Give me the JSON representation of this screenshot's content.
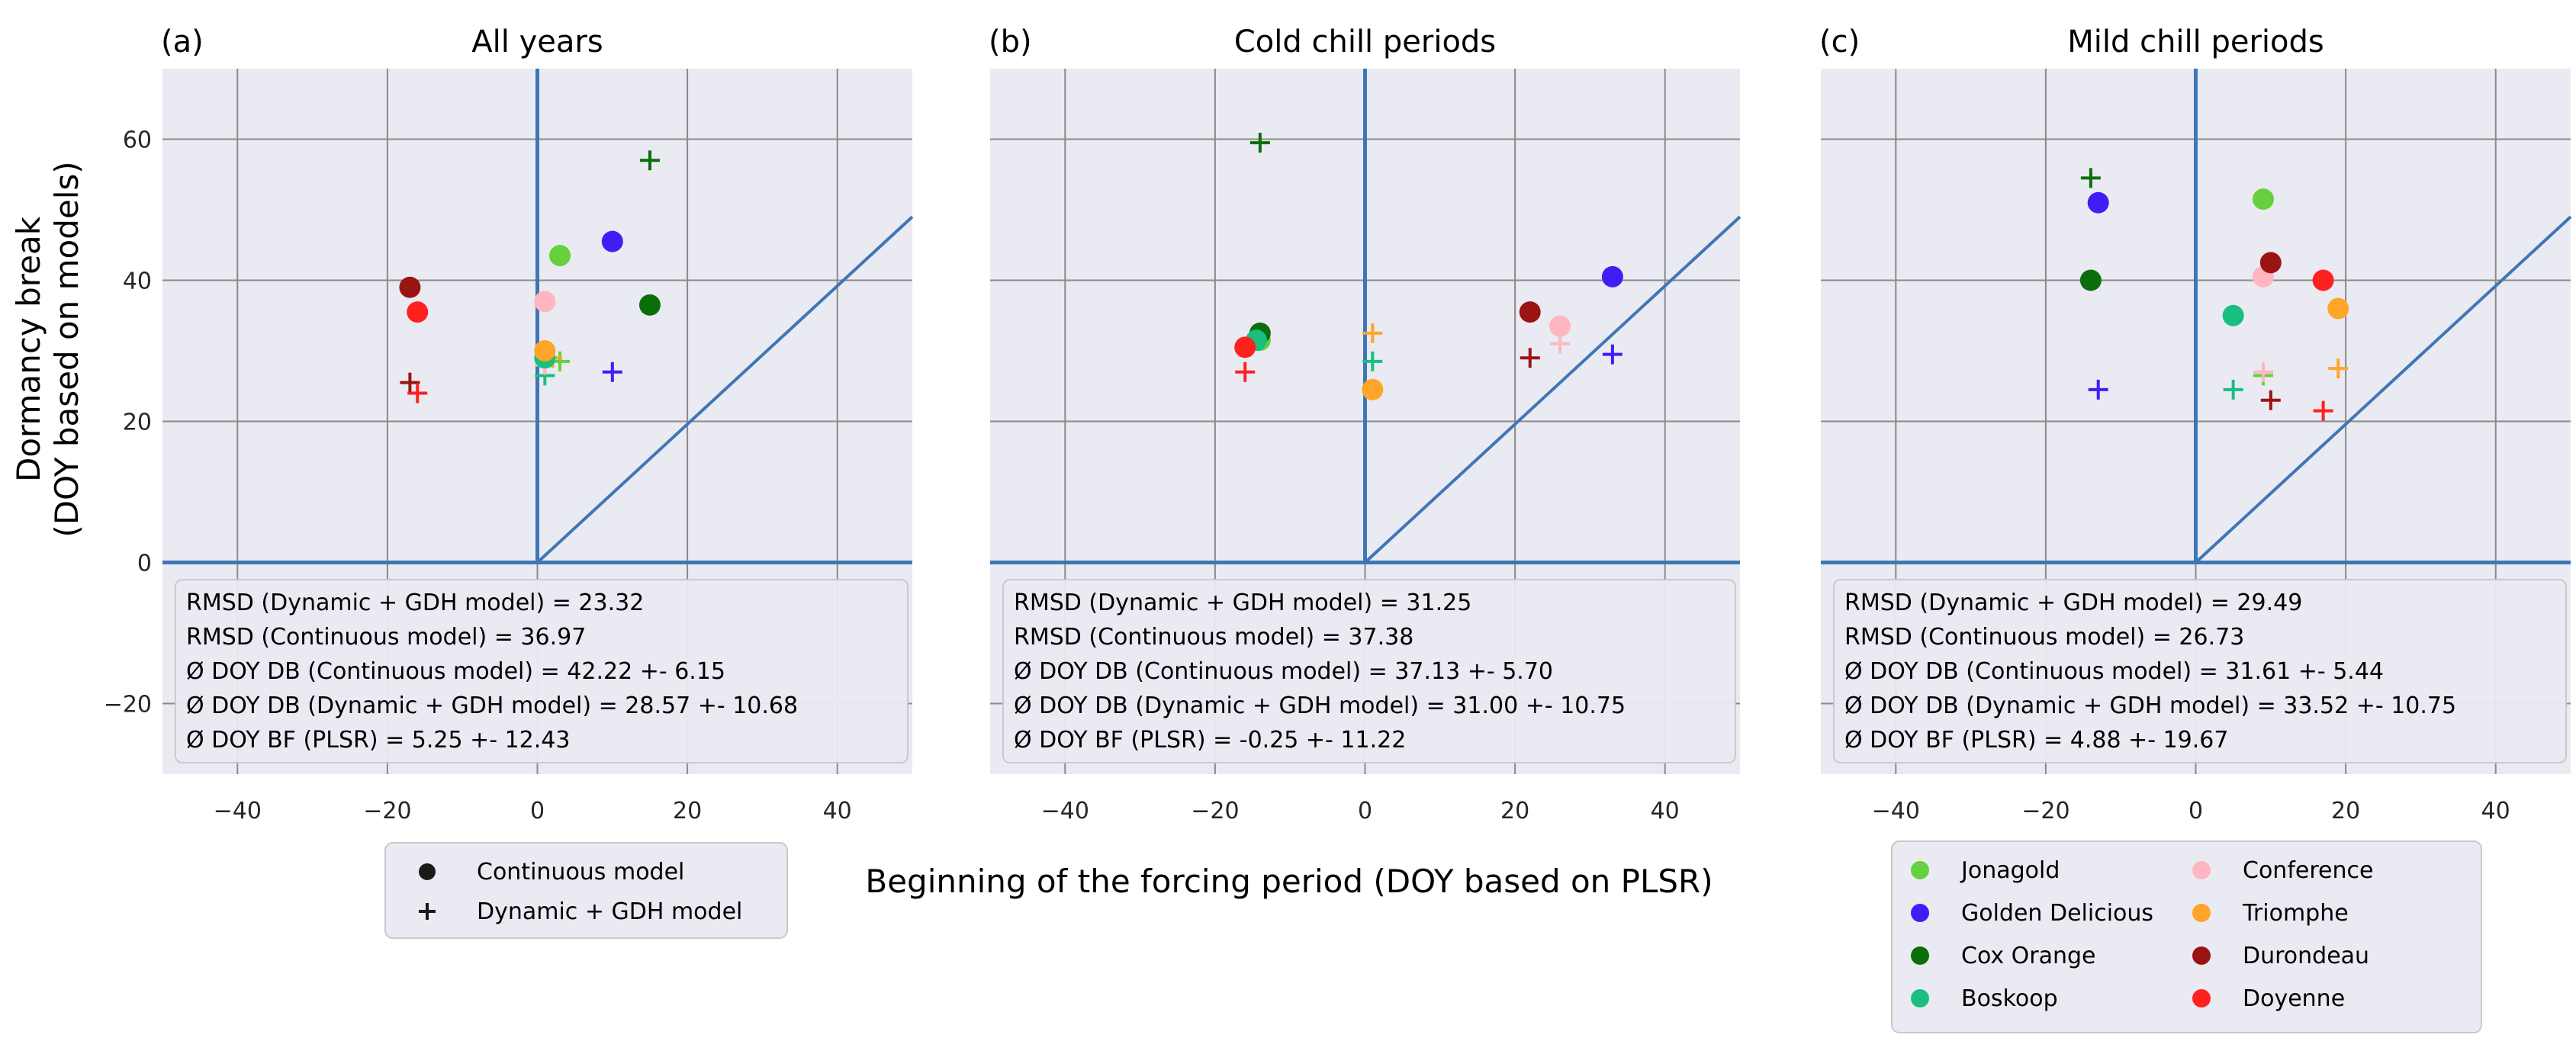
{
  "chart_data": {
    "type": "scatter",
    "xlabel": "Beginning of the forcing period (DOY based on PLSR)",
    "ylabel": [
      "Dormancy break",
      "(DOY based on models)"
    ],
    "xlim": [
      -50,
      50
    ],
    "ylim": [
      -30,
      70
    ],
    "xticks": [
      -40,
      -20,
      0,
      20,
      40
    ],
    "yticks": [
      -20,
      0,
      20,
      40,
      60
    ],
    "cultivars": [
      {
        "name": "Jonagold",
        "color": "#66d13c"
      },
      {
        "name": "Golden Delicious",
        "color": "#3f1ef5"
      },
      {
        "name": "Cox Orange",
        "color": "#0b6e0b"
      },
      {
        "name": "Boskoop",
        "color": "#18bf7f"
      },
      {
        "name": "Conference",
        "color": "#ffb6c1"
      },
      {
        "name": "Triomphe",
        "color": "#ffa52a"
      },
      {
        "name": "Durondeau",
        "color": "#9b1414"
      },
      {
        "name": "Doyenne",
        "color": "#ff2020"
      }
    ],
    "model_legend": [
      {
        "label": "Continuous model",
        "marker": "circle"
      },
      {
        "label": "Dynamic + GDH model",
        "marker": "plus"
      }
    ],
    "panels": [
      {
        "letter": "(a)",
        "title": "All years",
        "continuous": [
          {
            "cultivar": "Jonagold",
            "x": 3,
            "y": 43.5
          },
          {
            "cultivar": "Golden Delicious",
            "x": 10,
            "y": 45.5
          },
          {
            "cultivar": "Cox Orange",
            "x": 15,
            "y": 36.5
          },
          {
            "cultivar": "Boskoop",
            "x": 1,
            "y": 29
          },
          {
            "cultivar": "Conference",
            "x": 1,
            "y": 37
          },
          {
            "cultivar": "Triomphe",
            "x": 1,
            "y": 30
          },
          {
            "cultivar": "Durondeau",
            "x": -17,
            "y": 39
          },
          {
            "cultivar": "Doyenne",
            "x": -16,
            "y": 35.5
          }
        ],
        "dynamic": [
          {
            "cultivar": "Jonagold",
            "x": 3,
            "y": 28.5
          },
          {
            "cultivar": "Golden Delicious",
            "x": 10,
            "y": 27
          },
          {
            "cultivar": "Cox Orange",
            "x": 15,
            "y": 57
          },
          {
            "cultivar": "Boskoop",
            "x": 1,
            "y": 26.5
          },
          {
            "cultivar": "Conference",
            "x": 1,
            "y": 28
          },
          {
            "cultivar": "Triomphe",
            "x": 2,
            "y": 29
          },
          {
            "cultivar": "Durondeau",
            "x": -17,
            "y": 25.5
          },
          {
            "cultivar": "Doyenne",
            "x": -16,
            "y": 24
          }
        ],
        "stats": [
          "RMSD (Dynamic + GDH model) =  23.32",
          "RMSD (Continuous model) = 36.97",
          "Ø DOY DB (Continuous model) =  42.22 +- 6.15",
          "Ø DOY DB (Dynamic + GDH model) =  28.57 +- 10.68",
          "Ø DOY BF (PLSR) =  5.25 +- 12.43"
        ]
      },
      {
        "letter": "(b)",
        "title": "Cold chill periods",
        "continuous": [
          {
            "cultivar": "Jonagold",
            "x": -14,
            "y": 31.5
          },
          {
            "cultivar": "Golden Delicious",
            "x": 33,
            "y": 40.5
          },
          {
            "cultivar": "Cox Orange",
            "x": -14,
            "y": 32.5
          },
          {
            "cultivar": "Boskoop",
            "x": -14.5,
            "y": 31.5
          },
          {
            "cultivar": "Conference",
            "x": 26,
            "y": 33.5
          },
          {
            "cultivar": "Triomphe",
            "x": 1,
            "y": 24.5
          },
          {
            "cultivar": "Durondeau",
            "x": 22,
            "y": 35.5
          },
          {
            "cultivar": "Doyenne",
            "x": -16,
            "y": 30.5
          }
        ],
        "dynamic": [
          {
            "cultivar": "Jonagold",
            "x": -14.5,
            "y": 31.5
          },
          {
            "cultivar": "Golden Delicious",
            "x": 33,
            "y": 29.5
          },
          {
            "cultivar": "Cox Orange",
            "x": -14,
            "y": 59.5
          },
          {
            "cultivar": "Boskoop",
            "x": 1,
            "y": 28.5
          },
          {
            "cultivar": "Conference",
            "x": 26,
            "y": 31
          },
          {
            "cultivar": "Triomphe",
            "x": 1,
            "y": 32.5
          },
          {
            "cultivar": "Durondeau",
            "x": 22,
            "y": 29
          },
          {
            "cultivar": "Doyenne",
            "x": -16,
            "y": 27
          }
        ],
        "stats": [
          "RMSD (Dynamic + GDH model) =  31.25",
          "RMSD (Continuous model) = 37.38",
          "Ø DOY DB (Continuous model) =  37.13 +- 5.70",
          "Ø DOY DB (Dynamic + GDH model) =  31.00 +- 10.75",
          "Ø DOY BF (PLSR) =  -0.25 +- 11.22"
        ]
      },
      {
        "letter": "(c)",
        "title": "Mild chill periods",
        "continuous": [
          {
            "cultivar": "Jonagold",
            "x": 9,
            "y": 51.5
          },
          {
            "cultivar": "Golden Delicious",
            "x": -13,
            "y": 51
          },
          {
            "cultivar": "Cox Orange",
            "x": -14,
            "y": 40
          },
          {
            "cultivar": "Boskoop",
            "x": 5,
            "y": 35
          },
          {
            "cultivar": "Conference",
            "x": 9,
            "y": 40.5
          },
          {
            "cultivar": "Triomphe",
            "x": 19,
            "y": 36
          },
          {
            "cultivar": "Durondeau",
            "x": 10,
            "y": 42.5
          },
          {
            "cultivar": "Doyenne",
            "x": 17,
            "y": 40
          }
        ],
        "dynamic": [
          {
            "cultivar": "Jonagold",
            "x": 9,
            "y": 26.5
          },
          {
            "cultivar": "Golden Delicious",
            "x": -13,
            "y": 24.5
          },
          {
            "cultivar": "Cox Orange",
            "x": -14,
            "y": 54.5
          },
          {
            "cultivar": "Boskoop",
            "x": 5,
            "y": 24.5
          },
          {
            "cultivar": "Conference",
            "x": 9,
            "y": 27
          },
          {
            "cultivar": "Triomphe",
            "x": 19,
            "y": 27.5
          },
          {
            "cultivar": "Durondeau",
            "x": 10,
            "y": 23
          },
          {
            "cultivar": "Doyenne",
            "x": 17,
            "y": 21.5
          }
        ],
        "stats": [
          "RMSD (Dynamic + GDH model) =  29.49",
          "RMSD (Continuous model) = 26.73",
          "Ø DOY DB (Continuous model) =  31.61 +- 5.44",
          "Ø DOY DB (Dynamic + GDH model) =  33.52 +- 10.75",
          "Ø DOY BF (PLSR) =  4.88 +- 19.67"
        ]
      }
    ]
  }
}
